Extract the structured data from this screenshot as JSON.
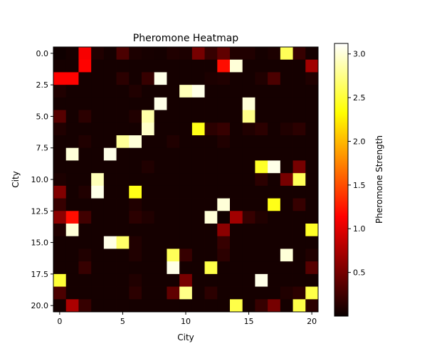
{
  "chart_data": {
    "type": "heatmap",
    "title": "Pheromone Heatmap",
    "xlabel": "City",
    "ylabel": "City",
    "colorbar_label": "Pheromone Strength",
    "colormap": "hot",
    "vmin": 0.0,
    "vmax": 3.12,
    "xticks": [
      0,
      5,
      10,
      15,
      20
    ],
    "xtick_labels": [
      "0",
      "5",
      "10",
      "15",
      "20"
    ],
    "yticks": [
      0,
      2.5,
      5,
      7.5,
      10,
      12.5,
      15,
      17.5,
      20
    ],
    "ytick_labels": [
      "0.0",
      "2.5",
      "5.0",
      "7.5",
      "10.0",
      "12.5",
      "15.0",
      "17.5",
      "20.0"
    ],
    "colorbar_ticks": [
      0.5,
      1.0,
      1.5,
      2.0,
      2.5,
      3.0
    ],
    "colorbar_tick_labels": [
      "0.5",
      "1.0",
      "1.5",
      "2.0",
      "2.5",
      "3.0"
    ],
    "matrix": [
      [
        0.02,
        0.05,
        1.1,
        0.1,
        0.05,
        0.3,
        0.08,
        0.06,
        0.05,
        0.1,
        0.08,
        0.5,
        0.2,
        0.4,
        0.1,
        0.1,
        0.05,
        0.08,
        2.6,
        0.2,
        0.05
      ],
      [
        0.05,
        0.05,
        1.15,
        0.05,
        0.05,
        0.05,
        0.05,
        0.05,
        0.05,
        0.05,
        0.05,
        0.05,
        0.05,
        1.2,
        3.0,
        0.05,
        0.05,
        0.05,
        0.05,
        0.05,
        0.7
      ],
      [
        1.15,
        1.15,
        0.05,
        0.05,
        0.05,
        0.15,
        0.05,
        0.2,
        3.05,
        0.05,
        0.05,
        0.05,
        0.08,
        0.1,
        0.05,
        0.05,
        0.1,
        0.3,
        0.05,
        0.05,
        0.1
      ],
      [
        0.1,
        0.05,
        0.05,
        0.05,
        0.05,
        0.05,
        0.1,
        0.05,
        0.05,
        0.05,
        2.9,
        3.05,
        0.05,
        0.05,
        0.05,
        0.05,
        0.05,
        0.05,
        0.05,
        0.05,
        0.05
      ],
      [
        0.05,
        0.05,
        0.05,
        0.05,
        0.05,
        0.05,
        0.05,
        0.05,
        3.05,
        0.05,
        0.05,
        0.05,
        0.05,
        0.05,
        0.05,
        3.0,
        0.05,
        0.05,
        0.05,
        0.05,
        0.05
      ],
      [
        0.35,
        0.05,
        0.15,
        0.05,
        0.05,
        0.05,
        0.1,
        2.85,
        0.05,
        0.05,
        0.05,
        0.05,
        0.05,
        0.05,
        0.05,
        2.75,
        0.05,
        0.05,
        0.05,
        0.05,
        0.05
      ],
      [
        0.1,
        0.05,
        0.05,
        0.05,
        0.05,
        0.05,
        0.05,
        2.95,
        0.05,
        0.05,
        0.05,
        2.4,
        0.15,
        0.2,
        0.05,
        0.1,
        0.15,
        0.05,
        0.1,
        0.15,
        0.05
      ],
      [
        0.05,
        0.05,
        0.1,
        0.05,
        0.05,
        2.8,
        3.0,
        0.05,
        0.05,
        0.1,
        0.05,
        0.05,
        0.05,
        0.1,
        0.05,
        0.05,
        0.05,
        0.05,
        0.05,
        0.05,
        0.05
      ],
      [
        0.05,
        3.0,
        0.05,
        0.05,
        3.05,
        0.05,
        0.05,
        0.05,
        0.05,
        0.05,
        0.05,
        0.05,
        0.05,
        0.05,
        0.05,
        0.05,
        0.05,
        0.05,
        0.05,
        0.05,
        0.05
      ],
      [
        0.05,
        0.05,
        0.05,
        0.05,
        0.05,
        0.05,
        0.05,
        0.1,
        0.05,
        0.05,
        0.05,
        0.05,
        0.05,
        0.05,
        0.05,
        0.05,
        2.45,
        3.05,
        0.05,
        0.5,
        0.05
      ],
      [
        0.08,
        0.05,
        0.05,
        2.9,
        0.05,
        0.05,
        0.05,
        0.05,
        0.05,
        0.05,
        0.05,
        0.05,
        0.05,
        0.05,
        0.05,
        0.05,
        0.15,
        0.05,
        0.5,
        2.6,
        0.05
      ],
      [
        0.55,
        0.05,
        0.1,
        3.05,
        0.05,
        0.05,
        2.4,
        0.05,
        0.05,
        0.05,
        0.05,
        0.05,
        0.05,
        0.05,
        0.05,
        0.05,
        0.05,
        0.05,
        0.05,
        0.05,
        0.05
      ],
      [
        0.2,
        0.05,
        0.05,
        0.05,
        0.05,
        0.05,
        0.1,
        0.05,
        0.05,
        0.05,
        0.05,
        0.05,
        0.05,
        3.0,
        0.05,
        0.05,
        0.05,
        2.4,
        0.05,
        0.2,
        0.05
      ],
      [
        0.6,
        1.2,
        0.25,
        0.05,
        0.05,
        0.05,
        0.15,
        0.1,
        0.05,
        0.05,
        0.05,
        0.05,
        3.0,
        0.02,
        0.7,
        0.2,
        0.1,
        0.05,
        0.05,
        0.05,
        0.05
      ],
      [
        0.1,
        3.0,
        0.05,
        0.05,
        0.05,
        0.05,
        0.05,
        0.05,
        0.05,
        0.05,
        0.05,
        0.05,
        0.05,
        0.6,
        0.05,
        0.05,
        0.05,
        0.05,
        0.05,
        0.05,
        2.45
      ],
      [
        0.05,
        0.05,
        0.05,
        0.05,
        3.05,
        2.65,
        0.1,
        0.05,
        0.05,
        0.05,
        0.05,
        0.05,
        0.05,
        0.2,
        0.05,
        0.05,
        0.05,
        0.05,
        0.05,
        0.05,
        0.05
      ],
      [
        0.05,
        0.05,
        0.1,
        0.05,
        0.05,
        0.05,
        0.1,
        0.05,
        0.05,
        2.6,
        0.2,
        0.05,
        0.05,
        0.15,
        0.05,
        0.05,
        0.05,
        0.05,
        3.0,
        0.05,
        0.1
      ],
      [
        0.05,
        0.05,
        0.2,
        0.05,
        0.05,
        0.05,
        0.05,
        0.05,
        0.05,
        3.05,
        0.05,
        0.05,
        2.55,
        0.05,
        0.05,
        0.05,
        0.05,
        0.05,
        0.05,
        0.05,
        0.35
      ],
      [
        2.5,
        0.05,
        0.05,
        0.05,
        0.05,
        0.05,
        0.1,
        0.05,
        0.05,
        0.05,
        0.5,
        0.05,
        0.05,
        0.05,
        0.05,
        0.05,
        3.05,
        0.05,
        0.05,
        0.05,
        0.05
      ],
      [
        0.3,
        0.05,
        0.05,
        0.05,
        0.05,
        0.05,
        0.15,
        0.05,
        0.05,
        0.4,
        2.75,
        0.05,
        0.15,
        0.05,
        0.05,
        0.05,
        0.05,
        0.05,
        0.1,
        0.15,
        2.55
      ],
      [
        0.05,
        0.75,
        0.2,
        0.05,
        0.05,
        0.05,
        0.05,
        0.05,
        0.05,
        0.05,
        0.05,
        0.05,
        0.05,
        0.05,
        2.55,
        0.05,
        0.2,
        0.5,
        0.05,
        2.55,
        0.15
      ]
    ]
  }
}
